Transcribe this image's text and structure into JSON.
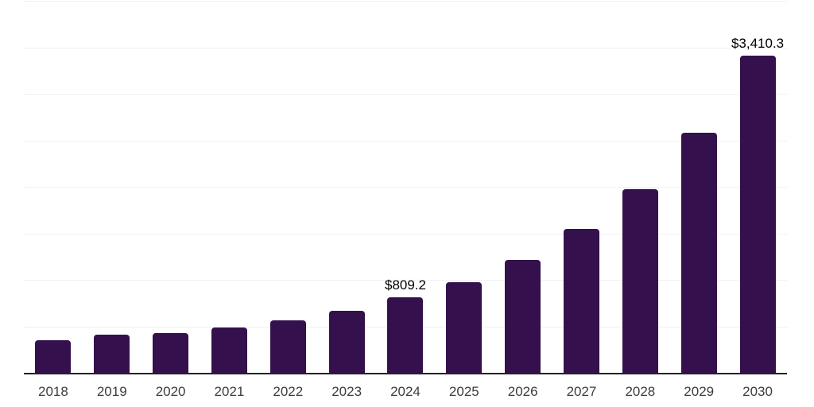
{
  "chart": {
    "background": "#ffffff",
    "bar_color": "#34114d",
    "axis_color": "#222222",
    "gridline_color": "#f0f0f0",
    "tick_label_color": "#3d3d3d",
    "data_label_color": "#000000"
  },
  "chart_data": {
    "type": "bar",
    "title": "",
    "xlabel": "",
    "ylabel": "",
    "categories": [
      "2018",
      "2019",
      "2020",
      "2021",
      "2022",
      "2023",
      "2024",
      "2025",
      "2026",
      "2027",
      "2028",
      "2029",
      "2030"
    ],
    "values": [
      355,
      407,
      430,
      487,
      567,
      667,
      809.2,
      975,
      1215,
      1545,
      1975,
      2585,
      3410.3
    ],
    "data_labels": [
      "",
      "",
      "",
      "",
      "",
      "",
      "$809.2",
      "",
      "",
      "",
      "",
      "",
      "$3,410.3"
    ],
    "ylim": [
      0,
      4000
    ],
    "gridline_step": 500,
    "grid": true,
    "legend": false,
    "currency_prefix": "$"
  }
}
